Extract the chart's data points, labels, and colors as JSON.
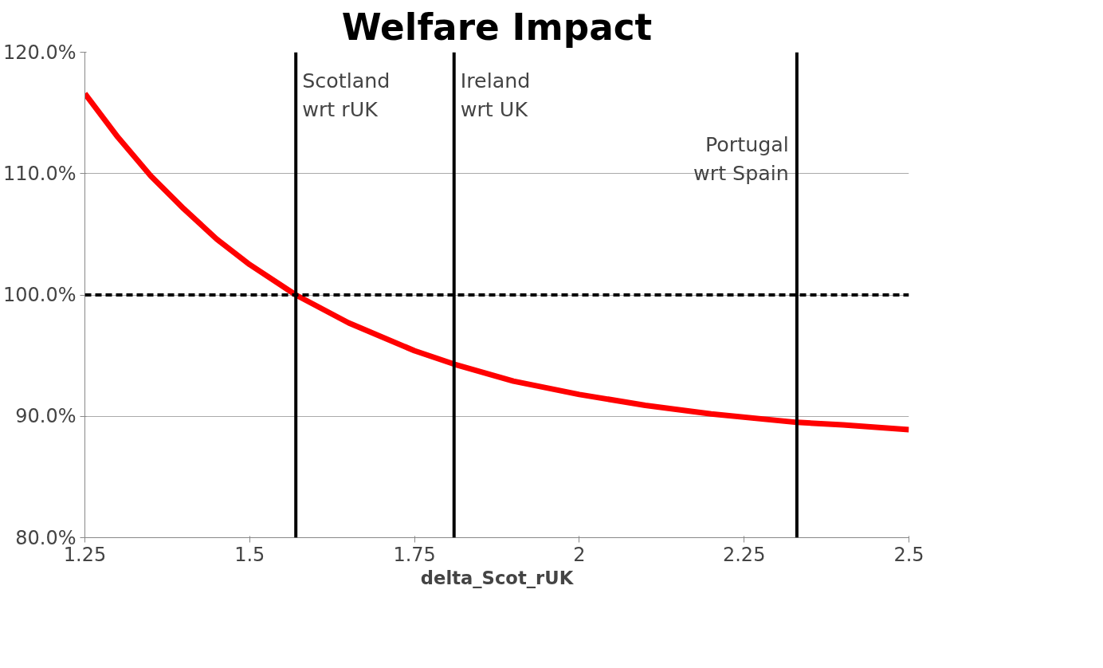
{
  "chart_data": {
    "type": "line",
    "title": "Welfare Impact",
    "xlabel": "delta_Scot_rUK",
    "x": [
      1.25,
      1.3,
      1.35,
      1.4,
      1.45,
      1.5,
      1.57,
      1.65,
      1.75,
      1.81,
      1.9,
      2.0,
      2.1,
      2.2,
      2.33,
      2.4,
      2.5
    ],
    "series": [
      {
        "color": "#ff0000",
        "values": [
          116.6,
          113.0,
          109.8,
          107.1,
          104.6,
          102.5,
          100.0,
          97.7,
          95.4,
          94.3,
          92.9,
          91.8,
          90.9,
          90.2,
          89.5,
          89.3,
          88.9
        ]
      }
    ],
    "xlim": [
      1.25,
      2.5
    ],
    "xticks": [
      1.25,
      1.5,
      1.75,
      2,
      2.25,
      2.5
    ],
    "ylim": [
      80,
      120
    ],
    "yticks": [
      {
        "value": 80,
        "label": "80.0%"
      },
      {
        "value": 90,
        "label": "90.0%"
      },
      {
        "value": 100,
        "label": "100.0%"
      },
      {
        "value": 110,
        "label": "110.0%"
      },
      {
        "value": 120,
        "label": "120.0%"
      }
    ],
    "grid": "y",
    "marker": "none",
    "line_style": "solid",
    "ref_lines": [
      {
        "axis": "y",
        "value": 100,
        "line_style": "dashed",
        "color": "#000000"
      },
      {
        "axis": "x",
        "value": 1.57,
        "label": "Scotland\nwrt rUK",
        "color": "#000000"
      },
      {
        "axis": "x",
        "value": 1.81,
        "label": "Ireland\nwrt UK",
        "color": "#000000"
      },
      {
        "axis": "x",
        "value": 2.33,
        "label": "Portugal\nwrt Spain",
        "color": "#000000"
      }
    ]
  }
}
